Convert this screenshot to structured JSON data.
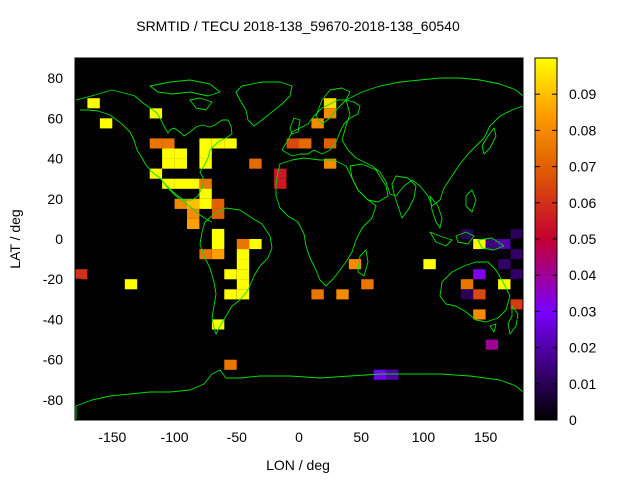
{
  "chart_data": {
    "type": "heatmap",
    "title": "SRMTID / TECU 2018-138_59670-2018-138_60540",
    "xlabel": "LON / deg",
    "ylabel": "LAT / deg",
    "xlim": [
      -180,
      180
    ],
    "ylim": [
      -90,
      90
    ],
    "xticks": [
      -150,
      -100,
      -50,
      0,
      50,
      100,
      150
    ],
    "yticks": [
      -80,
      -60,
      -40,
      -20,
      0,
      20,
      40,
      60,
      80
    ],
    "cell_size_deg": [
      10,
      5
    ],
    "colorbar": {
      "range": [
        0,
        0.1
      ],
      "ticks": [
        0,
        0.01,
        0.02,
        0.03,
        0.04,
        0.05,
        0.06,
        0.07,
        0.08,
        0.09
      ],
      "colormap": "black-purple-red-orange-yellow"
    },
    "background_color": "#000000",
    "coastline_color": "#00ff00",
    "grid": false,
    "cells": [
      {
        "lon": -165,
        "lat": 67.5,
        "value": 0.1
      },
      {
        "lon": -155,
        "lat": 57.5,
        "value": 0.1
      },
      {
        "lon": -115,
        "lat": 62.5,
        "value": 0.1
      },
      {
        "lon": -115,
        "lat": 47.5,
        "value": 0.075
      },
      {
        "lon": -105,
        "lat": 47.5,
        "value": 0.075
      },
      {
        "lon": -105,
        "lat": 42.5,
        "value": 0.1
      },
      {
        "lon": -105,
        "lat": 37.5,
        "value": 0.1
      },
      {
        "lon": -95,
        "lat": 42.5,
        "value": 0.1
      },
      {
        "lon": -95,
        "lat": 37.5,
        "value": 0.1
      },
      {
        "lon": -115,
        "lat": 32.5,
        "value": 0.1
      },
      {
        "lon": -105,
        "lat": 27.5,
        "value": 0.1
      },
      {
        "lon": -95,
        "lat": 27.5,
        "value": 0.1
      },
      {
        "lon": -85,
        "lat": 27.5,
        "value": 0.1
      },
      {
        "lon": -75,
        "lat": 47.5,
        "value": 0.1
      },
      {
        "lon": -75,
        "lat": 42.5,
        "value": 0.1
      },
      {
        "lon": -75,
        "lat": 37.5,
        "value": 0.1
      },
      {
        "lon": -65,
        "lat": 47.5,
        "value": 0.1
      },
      {
        "lon": -55,
        "lat": 47.5,
        "value": 0.1
      },
      {
        "lon": -35,
        "lat": 37.5,
        "value": 0.072
      },
      {
        "lon": -75,
        "lat": 27.5,
        "value": 0.075
      },
      {
        "lon": -75,
        "lat": 22.5,
        "value": 0.1
      },
      {
        "lon": -95,
        "lat": 17.5,
        "value": 0.08
      },
      {
        "lon": -85,
        "lat": 17.5,
        "value": 0.09
      },
      {
        "lon": -85,
        "lat": 12.5,
        "value": 0.08
      },
      {
        "lon": -75,
        "lat": 17.5,
        "value": 0.1
      },
      {
        "lon": -65,
        "lat": 17.5,
        "value": 0.07
      },
      {
        "lon": -65,
        "lat": 12.5,
        "value": 0.07
      },
      {
        "lon": -85,
        "lat": 7.5,
        "value": 0.085
      },
      {
        "lon": -65,
        "lat": 2.5,
        "value": 0.1
      },
      {
        "lon": -65,
        "lat": -2.5,
        "value": 0.1
      },
      {
        "lon": -75,
        "lat": -7.5,
        "value": 0.075
      },
      {
        "lon": -65,
        "lat": -7.5,
        "value": 0.085
      },
      {
        "lon": -45,
        "lat": -2.5,
        "value": 0.075
      },
      {
        "lon": -35,
        "lat": -2.5,
        "value": 0.1
      },
      {
        "lon": -45,
        "lat": -7.5,
        "value": 0.1
      },
      {
        "lon": -45,
        "lat": -12.5,
        "value": 0.1
      },
      {
        "lon": -55,
        "lat": -17.5,
        "value": 0.1
      },
      {
        "lon": -45,
        "lat": -17.5,
        "value": 0.1
      },
      {
        "lon": -45,
        "lat": -22.5,
        "value": 0.1
      },
      {
        "lon": -55,
        "lat": -27.5,
        "value": 0.1
      },
      {
        "lon": -45,
        "lat": -27.5,
        "value": 0.1
      },
      {
        "lon": -65,
        "lat": -42.5,
        "value": 0.1
      },
      {
        "lon": -55,
        "lat": -62.5,
        "value": 0.075
      },
      {
        "lon": -175,
        "lat": -17.5,
        "value": 0.06
      },
      {
        "lon": -135,
        "lat": -22.5,
        "value": 0.1
      },
      {
        "lon": -15,
        "lat": 32.5,
        "value": 0.055
      },
      {
        "lon": -15,
        "lat": 27.5,
        "value": 0.055
      },
      {
        "lon": -5,
        "lat": 47.5,
        "value": 0.065
      },
      {
        "lon": 5,
        "lat": 47.5,
        "value": 0.072
      },
      {
        "lon": 15,
        "lat": 57.5,
        "value": 0.08
      },
      {
        "lon": 25,
        "lat": 67.5,
        "value": 0.095
      },
      {
        "lon": 25,
        "lat": 62.5,
        "value": 0.08
      },
      {
        "lon": 25,
        "lat": 47.5,
        "value": 0.07
      },
      {
        "lon": 25,
        "lat": 37.5,
        "value": 0.08
      },
      {
        "lon": 15,
        "lat": -27.5,
        "value": 0.075
      },
      {
        "lon": 35,
        "lat": -27.5,
        "value": 0.08
      },
      {
        "lon": 45,
        "lat": -12.5,
        "value": 0.08
      },
      {
        "lon": 55,
        "lat": -22.5,
        "value": 0.075
      },
      {
        "lon": 65,
        "lat": -67.5,
        "value": 0.028
      },
      {
        "lon": 75,
        "lat": -67.5,
        "value": 0.02
      },
      {
        "lon": 105,
        "lat": -12.5,
        "value": 0.1
      },
      {
        "lon": 145,
        "lat": -2.5,
        "value": 0.1
      },
      {
        "lon": 135,
        "lat": 2.5,
        "value": 0.01
      },
      {
        "lon": 155,
        "lat": -2.5,
        "value": 0.015
      },
      {
        "lon": 165,
        "lat": -2.5,
        "value": 0.02
      },
      {
        "lon": 175,
        "lat": 2.5,
        "value": 0.01
      },
      {
        "lon": 175,
        "lat": -7.5,
        "value": 0.012
      },
      {
        "lon": 165,
        "lat": -12.5,
        "value": 0.012
      },
      {
        "lon": 175,
        "lat": -17.5,
        "value": 0.012
      },
      {
        "lon": 135,
        "lat": -22.5,
        "value": 0.075
      },
      {
        "lon": 135,
        "lat": -27.5,
        "value": 0.01
      },
      {
        "lon": 145,
        "lat": -17.5,
        "value": 0.032
      },
      {
        "lon": 145,
        "lat": -27.5,
        "value": 0.065
      },
      {
        "lon": 165,
        "lat": -22.5,
        "value": 0.1
      },
      {
        "lon": 145,
        "lat": -37.5,
        "value": 0.08
      },
      {
        "lon": 175,
        "lat": -32.5,
        "value": 0.062
      },
      {
        "lon": 155,
        "lat": -52.5,
        "value": 0.04
      }
    ]
  }
}
